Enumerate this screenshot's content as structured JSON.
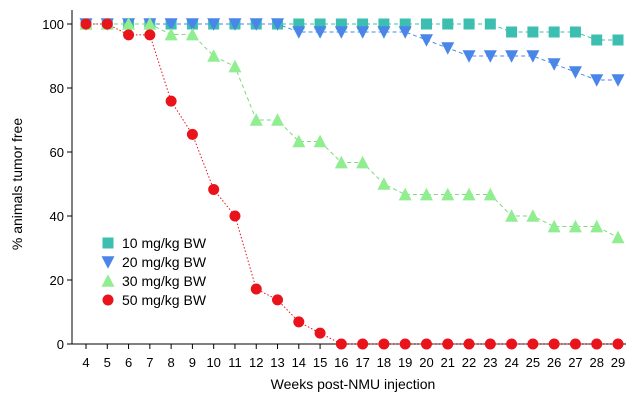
{
  "chart_data": {
    "type": "line",
    "title": "",
    "xlabel": "Weeks post-NMU injection",
    "ylabel": "% animals tumor free",
    "x": [
      4,
      5,
      6,
      7,
      8,
      9,
      10,
      11,
      12,
      13,
      14,
      15,
      16,
      17,
      18,
      19,
      20,
      21,
      22,
      23,
      24,
      25,
      26,
      27,
      28,
      29
    ],
    "xlim": [
      4,
      29
    ],
    "ylim": [
      0,
      100
    ],
    "yticks": [
      0,
      20,
      40,
      60,
      80,
      100
    ],
    "grid": false,
    "legend_position": "lower-left",
    "series": [
      {
        "name": "10 mg/kg BW",
        "marker": "square",
        "color": "#3cbfb0",
        "line_color": "#3cbfb0",
        "values": [
          100,
          100,
          100,
          100,
          100,
          100,
          100,
          100,
          100,
          100,
          100,
          100,
          100,
          100,
          100,
          100,
          100,
          100,
          100,
          100,
          97.5,
          97.5,
          97.5,
          97.5,
          95,
          95
        ]
      },
      {
        "name": "20 mg/kg BW",
        "marker": "triangle-down",
        "color": "#4a86e8",
        "line_color": "#4a86e8",
        "values": [
          100,
          100,
          100,
          100,
          100,
          100,
          100,
          100,
          100,
          100,
          97.5,
          97.5,
          97.5,
          97.5,
          97.5,
          97.5,
          95,
          92.5,
          90,
          90,
          90,
          90,
          87.5,
          85,
          82.5,
          82.5
        ]
      },
      {
        "name": "30 mg/kg BW",
        "marker": "triangle-up",
        "color": "#90ee90",
        "line_color": "#7fd97f",
        "values": [
          100,
          100,
          100,
          100,
          96.7,
          96.7,
          90,
          86.7,
          70,
          70,
          63.3,
          63.3,
          56.7,
          56.7,
          50,
          46.7,
          46.7,
          46.7,
          46.7,
          46.7,
          40,
          40,
          36.7,
          36.7,
          36.7,
          33.3
        ]
      },
      {
        "name": "50 mg/kg BW",
        "marker": "circle",
        "color": "#e8131b",
        "line_color": "#e8131b",
        "values": [
          100,
          100,
          96.6,
          96.6,
          75.9,
          65.5,
          48.3,
          40,
          17.2,
          13.8,
          6.9,
          3.4,
          0,
          0,
          0,
          0,
          0,
          0,
          0,
          0,
          0,
          0,
          0,
          0,
          0,
          0
        ]
      }
    ]
  }
}
